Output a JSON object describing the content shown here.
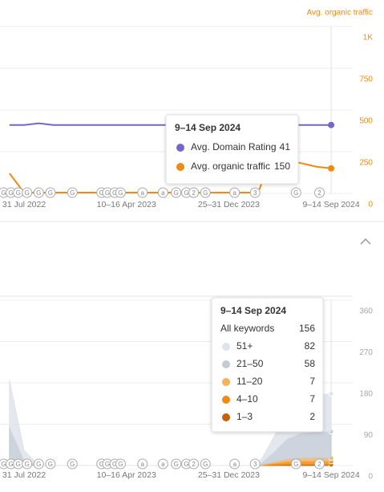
{
  "chart_data": [
    {
      "type": "line",
      "y_label": "Avg. organic traffic",
      "categories": [
        null,
        "31 Jul 2022",
        null,
        null,
        null,
        null,
        null,
        null,
        "10–16 Apr 2023",
        null,
        null,
        null,
        null,
        null,
        null,
        "25–31 Dec 2023",
        null,
        null,
        null,
        null,
        null,
        null,
        "9–14 Sep 2024"
      ],
      "series": [
        {
          "name": "Avg. Domain Rating",
          "color": "#7566c7",
          "axis": "y2",
          "values": [
            41,
            41,
            42,
            41,
            41,
            41,
            41,
            41,
            41,
            41,
            41,
            41,
            41,
            41,
            41,
            41,
            41,
            41,
            41,
            41,
            41,
            41,
            41
          ]
        },
        {
          "name": "Avg. organic traffic",
          "color": "#f08a12",
          "values": [
            120,
            5,
            5,
            5,
            5,
            5,
            5,
            5,
            5,
            5,
            5,
            5,
            5,
            5,
            5,
            5,
            5,
            5,
            230,
            200,
            180,
            160,
            150
          ]
        }
      ],
      "ylim": [
        0,
        1000
      ],
      "yticks": [
        0,
        250,
        500,
        750,
        {
          "value": 1000,
          "label": "1K"
        }
      ],
      "ytick_color": "#f08a12",
      "y2lim": [
        0,
        100
      ],
      "grid": true,
      "tooltip": true,
      "annotations": [
        {
          "x": -0.4,
          "label": "G"
        },
        {
          "x": 0.1,
          "label": "G"
        },
        {
          "x": 0.6,
          "label": "G"
        },
        {
          "x": 1.2,
          "label": "G"
        },
        {
          "x": 2.0,
          "label": "G"
        },
        {
          "x": 2.8,
          "label": "G"
        },
        {
          "x": 4.3,
          "label": "G"
        },
        {
          "x": 6.3,
          "label": "G"
        },
        {
          "x": 6.7,
          "label": "G"
        },
        {
          "x": 7.2,
          "label": "G"
        },
        {
          "x": 7.6,
          "label": "G"
        },
        {
          "x": 9.1,
          "label": "a"
        },
        {
          "x": 10.5,
          "label": "a"
        },
        {
          "x": 11.4,
          "label": "G"
        },
        {
          "x": 12.1,
          "label": "G"
        },
        {
          "x": 12.6,
          "label": "2"
        },
        {
          "x": 13.4,
          "label": "G"
        },
        {
          "x": 15.4,
          "label": "a"
        },
        {
          "x": 16.8,
          "label": "3"
        },
        {
          "x": 19.6,
          "label": "G"
        },
        {
          "x": 21.2,
          "label": "2"
        }
      ]
    },
    {
      "type": "area",
      "categories": [
        null,
        "31 Jul 2022",
        null,
        null,
        null,
        null,
        null,
        null,
        "10–16 Apr 2023",
        null,
        null,
        null,
        null,
        null,
        null,
        "25–31 Dec 2023",
        null,
        null,
        null,
        null,
        null,
        null,
        "9–14 Sep 2024"
      ],
      "series": [
        {
          "name": "1–3",
          "color": "#c2630c",
          "values": [
            2,
            0,
            0,
            0,
            0,
            0,
            0,
            0,
            0,
            0,
            0,
            0,
            0,
            0,
            0,
            0,
            0,
            0,
            1,
            2,
            2,
            2,
            2
          ]
        },
        {
          "name": "4–10",
          "color": "#f08a12",
          "values": [
            5,
            1,
            0,
            0,
            0,
            0,
            0,
            0,
            0,
            0,
            0,
            0,
            0,
            0,
            0,
            0,
            0,
            0,
            3,
            6,
            7,
            7,
            7
          ]
        },
        {
          "name": "11–20",
          "color": "#f6b25a",
          "values": [
            8,
            2,
            0,
            0,
            0,
            0,
            0,
            0,
            0,
            0,
            0,
            0,
            0,
            0,
            0,
            0,
            0,
            0,
            3,
            6,
            7,
            8,
            7
          ]
        },
        {
          "name": "21–50",
          "color": "#c6ccd7",
          "values": [
            70,
            10,
            0,
            0,
            0,
            0,
            0,
            0,
            0,
            0,
            0,
            0,
            0,
            0,
            0,
            0,
            0,
            0,
            20,
            45,
            55,
            57,
            58
          ]
        },
        {
          "name": "51+",
          "color": "#dfe3ea",
          "values": [
            100,
            20,
            0,
            0,
            0,
            0,
            0,
            0,
            0,
            0,
            0,
            0,
            0,
            0,
            0,
            0,
            0,
            0,
            30,
            60,
            75,
            80,
            82
          ]
        }
      ],
      "ylim": [
        0,
        360
      ],
      "yticks": [
        0,
        90,
        180,
        270,
        360
      ],
      "ytick_color": "#a0a7b3",
      "grid": true,
      "tooltip": {
        "total_label": "All keywords",
        "total": 156
      },
      "annotations": [
        {
          "x": -0.4,
          "label": "G"
        },
        {
          "x": 0.1,
          "label": "G"
        },
        {
          "x": 0.6,
          "label": "G"
        },
        {
          "x": 1.2,
          "label": "G"
        },
        {
          "x": 2.0,
          "label": "G"
        },
        {
          "x": 2.8,
          "label": "G"
        },
        {
          "x": 4.3,
          "label": "G"
        },
        {
          "x": 6.3,
          "label": "G"
        },
        {
          "x": 6.7,
          "label": "G"
        },
        {
          "x": 7.2,
          "label": "G"
        },
        {
          "x": 7.6,
          "label": "G"
        },
        {
          "x": 9.1,
          "label": "a"
        },
        {
          "x": 10.5,
          "label": "a"
        },
        {
          "x": 11.4,
          "label": "G"
        },
        {
          "x": 12.1,
          "label": "G"
        },
        {
          "x": 12.6,
          "label": "2"
        },
        {
          "x": 13.4,
          "label": "G"
        },
        {
          "x": 15.4,
          "label": "a"
        },
        {
          "x": 16.8,
          "label": "3"
        },
        {
          "x": 19.6,
          "label": "G"
        },
        {
          "x": 21.2,
          "label": "2"
        }
      ]
    }
  ]
}
